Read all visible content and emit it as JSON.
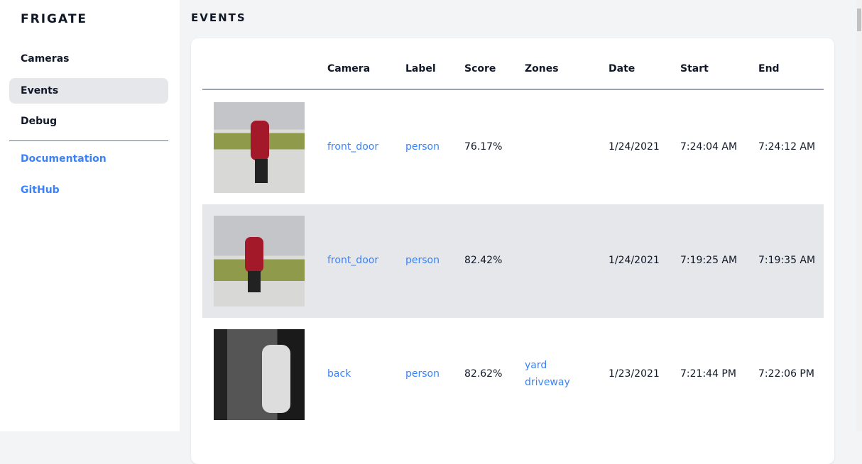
{
  "sidebar": {
    "brand": "FRIGATE",
    "items": [
      {
        "label": "Cameras"
      },
      {
        "label": "Events",
        "active": true
      },
      {
        "label": "Debug"
      }
    ],
    "links": [
      {
        "label": "Documentation"
      },
      {
        "label": "GitHub"
      }
    ]
  },
  "page": {
    "title": "EVENTS"
  },
  "table": {
    "headers": [
      "Camera",
      "Label",
      "Score",
      "Zones",
      "Date",
      "Start",
      "End"
    ],
    "rows": [
      {
        "camera": "front_door",
        "label": "person",
        "score": "76.17%",
        "zones": [
          "",
          ""
        ],
        "date": "1/24/2021",
        "start": "7:24:04 AM",
        "end": "7:24:12 AM"
      },
      {
        "camera": "front_door",
        "label": "person",
        "score": "82.42%",
        "zones": [
          "",
          ""
        ],
        "date": "1/24/2021",
        "start": "7:19:25 AM",
        "end": "7:19:35 AM"
      },
      {
        "camera": "back",
        "label": "person",
        "score": "82.62%",
        "zones": [
          "yard",
          "driveway"
        ],
        "date": "1/23/2021",
        "start": "7:21:44 PM",
        "end": "7:22:06 PM"
      }
    ]
  },
  "colors": {
    "accent": "#3b82f6",
    "active_bg": "#e5e7eb",
    "bg": "#f3f4f6"
  }
}
